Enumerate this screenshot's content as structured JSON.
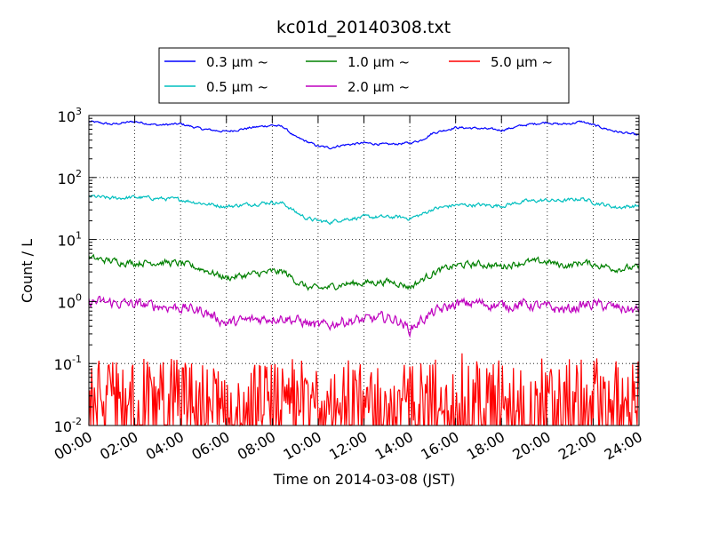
{
  "chart_data": {
    "type": "line",
    "title": "kc01d_20140308.txt",
    "xlabel": "Time on 2014-03-08 (JST)",
    "ylabel": "Count / L",
    "yscale": "log",
    "ylim": [
      0.01,
      1000
    ],
    "xlim": [
      0,
      24
    ],
    "x_unit": "hours",
    "x_tick_labels": [
      "00:00",
      "02:00",
      "04:00",
      "06:00",
      "08:00",
      "10:00",
      "12:00",
      "14:00",
      "16:00",
      "18:00",
      "20:00",
      "22:00",
      "24:00"
    ],
    "y_tick_labels": [
      {
        "base": "10",
        "exp": "-2",
        "value": 0.01
      },
      {
        "base": "10",
        "exp": "-1",
        "value": 0.1
      },
      {
        "base": "10",
        "exp": "0",
        "value": 1
      },
      {
        "base": "10",
        "exp": "1",
        "value": 10
      },
      {
        "base": "10",
        "exp": "2",
        "value": 100
      },
      {
        "base": "10",
        "exp": "3",
        "value": 1000
      }
    ],
    "grid": true,
    "legend_position": "top-center",
    "legend": [
      {
        "label": "0.3 μm ~",
        "color": "#0000ff"
      },
      {
        "label": "0.5 μm ~",
        "color": "#00bfbf"
      },
      {
        "label": "1.0 μm ~",
        "color": "#008000"
      },
      {
        "label": "2.0 μm ~",
        "color": "#bf00bf"
      },
      {
        "label": "5.0 μm ~",
        "color": "#ff0000"
      }
    ],
    "x": [
      0,
      1,
      2,
      3,
      4,
      5,
      6,
      7,
      8,
      8.5,
      9,
      9.5,
      10,
      10.5,
      11,
      12,
      13,
      13.5,
      14,
      14.5,
      15,
      16,
      17,
      18,
      19,
      20,
      20.5,
      21,
      21.5,
      22,
      23,
      24
    ],
    "series": [
      {
        "name": "0.3 μm ~",
        "color": "#0000ff",
        "noise": 0.015,
        "values": [
          800,
          720,
          800,
          700,
          730,
          600,
          550,
          630,
          700,
          650,
          450,
          380,
          320,
          300,
          330,
          360,
          340,
          350,
          360,
          400,
          520,
          640,
          620,
          580,
          700,
          780,
          720,
          740,
          800,
          700,
          550,
          480
        ]
      },
      {
        "name": "0.5 μm ~",
        "color": "#00bfbf",
        "noise": 0.025,
        "values": [
          50,
          46,
          48,
          46,
          44,
          38,
          34,
          37,
          40,
          38,
          28,
          22,
          20,
          19,
          21,
          23,
          23,
          23,
          22,
          25,
          31,
          36,
          36,
          35,
          41,
          43,
          42,
          43,
          46,
          40,
          33,
          35
        ]
      },
      {
        "name": "1.0 μm ~",
        "color": "#008000",
        "noise": 0.045,
        "values": [
          5,
          4.5,
          4.2,
          4.3,
          4.1,
          3.3,
          2.4,
          2.7,
          3.0,
          3.0,
          2.2,
          1.7,
          1.6,
          1.7,
          1.9,
          2.0,
          2.1,
          2.0,
          1.7,
          2.2,
          2.9,
          3.8,
          4.0,
          3.7,
          4.3,
          4.4,
          3.9,
          3.8,
          4.3,
          4.0,
          3.4,
          3.5
        ]
      },
      {
        "name": "2.0 μm ~",
        "color": "#bf00bf",
        "noise": 0.07,
        "values": [
          1.0,
          0.95,
          0.9,
          0.85,
          0.8,
          0.7,
          0.45,
          0.5,
          0.55,
          0.55,
          0.5,
          0.45,
          0.4,
          0.42,
          0.48,
          0.5,
          0.55,
          0.5,
          0.35,
          0.5,
          0.65,
          0.9,
          0.95,
          0.85,
          0.9,
          0.8,
          0.75,
          0.75,
          0.85,
          0.9,
          0.8,
          0.7
        ]
      },
      {
        "name": "5.0 μm ~",
        "color": "#ff0000",
        "noise": 0.6,
        "values": [
          0.035,
          0.04,
          0.04,
          0.04,
          0.035,
          0.03,
          0.025,
          0.03,
          0.03,
          0.035,
          0.035,
          0.035,
          0.035,
          0.04,
          0.035,
          0.035,
          0.035,
          0.03,
          0.03,
          0.035,
          0.04,
          0.045,
          0.04,
          0.035,
          0.035,
          0.04,
          0.035,
          0.035,
          0.04,
          0.04,
          0.035,
          0.035
        ]
      }
    ]
  }
}
